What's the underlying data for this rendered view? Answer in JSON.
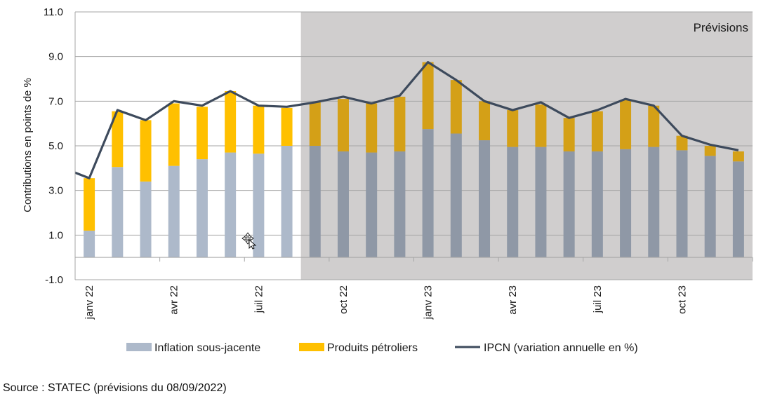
{
  "source": "Source : STATEC (prévisions du 08/09/2022)",
  "chart_data": {
    "type": "bar",
    "stacked": true,
    "ylabel": "Contributions en points de %",
    "ylim": [
      -1.0,
      11.0
    ],
    "yticks": [
      "-1.0",
      "1.0",
      "3.0",
      "5.0",
      "7.0",
      "9.0",
      "11.0"
    ],
    "ytick_values": [
      -1,
      1,
      3,
      5,
      7,
      9,
      11
    ],
    "grid": true,
    "legend_position": "bottom",
    "forecast_label": "Prévisions",
    "forecast_start_index": 8,
    "x_labels": [
      {
        "index": 0,
        "label": "janv 22"
      },
      {
        "index": 3,
        "label": "avr 22"
      },
      {
        "index": 6,
        "label": "juil 22"
      },
      {
        "index": 9,
        "label": "oct 22"
      },
      {
        "index": 12,
        "label": "janv 23"
      },
      {
        "index": 15,
        "label": "avr 23"
      },
      {
        "index": 18,
        "label": "juil 23"
      },
      {
        "index": 21,
        "label": "oct 23"
      }
    ],
    "series": [
      {
        "name": "Inflation sous-jacente",
        "kind": "bar",
        "color": "#adb9ca",
        "forecast_color": "#8f98a6",
        "values": [
          1.2,
          4.05,
          3.4,
          4.1,
          4.4,
          4.7,
          4.65,
          5.0,
          5.0,
          4.75,
          4.7,
          4.75,
          5.75,
          5.55,
          5.25,
          4.95,
          4.95,
          4.75,
          4.75,
          4.85,
          4.95,
          4.8,
          4.55,
          4.3
        ]
      },
      {
        "name": "Produits pétroliers",
        "kind": "bar",
        "color": "#ffc000",
        "forecast_color": "#d4a017",
        "values": [
          2.35,
          2.5,
          2.75,
          2.8,
          2.35,
          2.75,
          2.15,
          1.7,
          1.95,
          2.35,
          2.2,
          2.45,
          3.0,
          2.4,
          1.75,
          1.65,
          1.9,
          1.5,
          1.8,
          2.2,
          1.85,
          0.65,
          0.45,
          0.45
        ]
      },
      {
        "name": "IPCN (variation annuelle en %)",
        "kind": "line",
        "color": "#3d4a5c",
        "values": [
          3.55,
          6.6,
          6.15,
          7.0,
          6.8,
          7.45,
          6.8,
          6.75,
          6.95,
          7.2,
          6.9,
          7.25,
          8.75,
          7.95,
          7.0,
          6.6,
          6.95,
          6.25,
          6.6,
          7.1,
          6.8,
          5.45,
          5.05,
          4.8
        ]
      }
    ]
  }
}
